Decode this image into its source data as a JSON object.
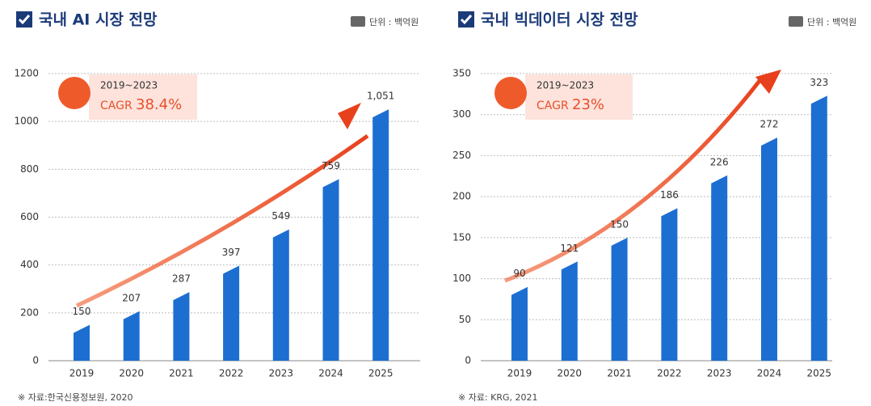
{
  "chart_data": [
    {
      "type": "bar",
      "title": "국내 AI 시장 전망",
      "unit": "단위 : 백억원",
      "cagr_period": "2019~2023",
      "cagr_label": "CAGR",
      "cagr_value": "38.4%",
      "categories": [
        "2019",
        "2020",
        "2021",
        "2022",
        "2023",
        "2024",
        "2025"
      ],
      "values": [
        150,
        207,
        287,
        397,
        549,
        759,
        1051
      ],
      "value_labels": [
        "150",
        "207",
        "287",
        "397",
        "549",
        "759",
        "1,051"
      ],
      "color": "#1c6fd1",
      "ylim": [
        0,
        1200
      ],
      "yticks": [
        0,
        200,
        400,
        600,
        800,
        1000,
        1200
      ],
      "grid": true,
      "source": "※ 자료:한국신용정보원, 2020"
    },
    {
      "type": "bar",
      "title": "국내 빅데이터 시장 전망",
      "unit": "단위 : 백억원",
      "cagr_period": "2019~2023",
      "cagr_label": "CAGR",
      "cagr_value": "23%",
      "categories": [
        "2019",
        "2020",
        "2021",
        "2022",
        "2023",
        "2024",
        "2025"
      ],
      "values": [
        90,
        121,
        150,
        186,
        226,
        272,
        323
      ],
      "color": "#1c6fd1",
      "ylim": [
        0,
        350
      ],
      "yticks": [
        0,
        50,
        100,
        150,
        200,
        250,
        300,
        350
      ],
      "grid": true,
      "source": "※ 자료: KRG, 2021"
    }
  ]
}
